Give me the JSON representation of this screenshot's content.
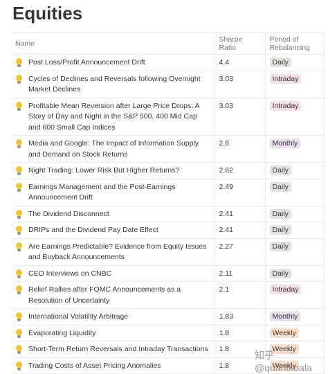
{
  "title": "Equities",
  "table": {
    "columns": [
      "Name",
      "Sharpe Ratio",
      "Period of Rebalancing"
    ],
    "rows": [
      [
        "Post Loss/Profit Announcement Drift",
        "4.4",
        "Daily"
      ],
      [
        "Cycles of Declines and Reversals following Overnight Market Declines",
        "3.03",
        "Intraday"
      ],
      [
        "Profitable Mean Reversion after Large Price Drops: A Story of Day and Night in the S&P 500, 400 Mid Cap and 600 Small Cap Indices",
        "3.03",
        "Intraday"
      ],
      [
        "Media and Google: The Impact of Information Supply and Demand on Stock Returns",
        "2.8",
        "Monthly"
      ],
      [
        "Night Trading: Lower Risk But Higher Returns?",
        "2.62",
        "Daily"
      ],
      [
        "Earnings Management and the Post-Earnings Announcement Drift",
        "2.49",
        "Daily"
      ],
      [
        "The Dividend Disconnect",
        "2.41",
        "Daily"
      ],
      [
        "DRIPs and the Dividend Pay Date Effect",
        "2.41",
        "Daily"
      ],
      [
        "Are Earnings Predictable? Evidence from Equity Issues and Buyback Announcements",
        "2.27",
        "Daily"
      ],
      [
        "CEO Interviews on CNBC",
        "2.11",
        "Daily"
      ],
      [
        "Relief Rallies after FOMC Announcements as a Resolution of Uncertainty",
        "2.1",
        "Intraday"
      ],
      [
        "International Volatility Arbitrage",
        "1.83",
        "Monthly"
      ],
      [
        "Evaporating Liquidity",
        "1.8",
        "Weekly"
      ],
      [
        "Short-Term Return Reversals and Intraday Transactions",
        "1.8",
        "Weekly"
      ],
      [
        "Trading Costs of Asset Pricing Anomalies",
        "1.8",
        "Weekly"
      ]
    ],
    "period_colors": {
      "Daily": "#e3e2e0",
      "Intraday": "#f5e0e9",
      "Monthly": "#e8deee",
      "Weekly": "#fadec9"
    }
  },
  "watermark": "知乎 @quantkoala"
}
